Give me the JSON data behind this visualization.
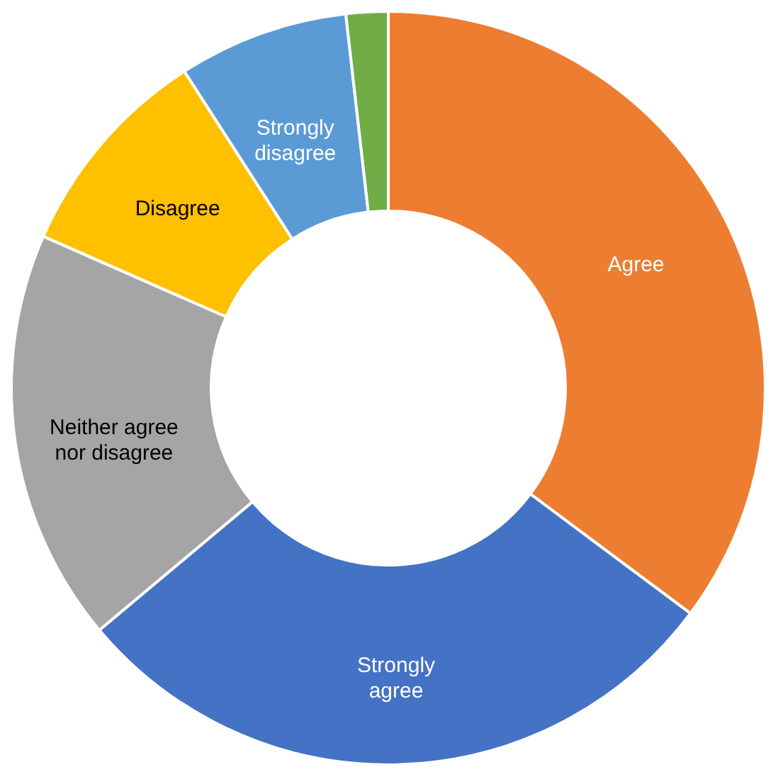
{
  "chart_data": {
    "type": "donut",
    "categories": [
      "Agree",
      "Strongly agree",
      "Neither agree nor disagree",
      "Disagree",
      "Strongly disagree",
      null
    ],
    "values": [
      35.2,
      28.7,
      17.7,
      9.3,
      7.3,
      1.8
    ],
    "colors": [
      "#ed7d31",
      "#4472c4",
      "#a5a5a5",
      "#ffc000",
      "#5b9bd5",
      "#70ad47"
    ],
    "legend": false
  }
}
